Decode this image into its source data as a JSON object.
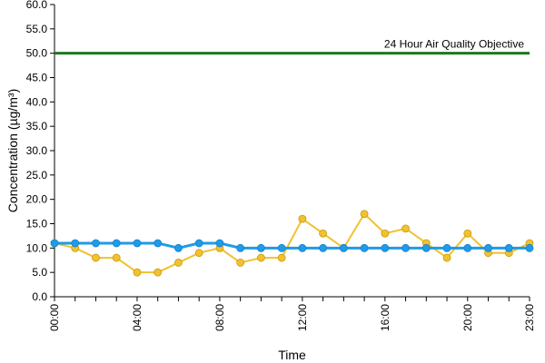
{
  "chart_data": {
    "type": "line",
    "title": "",
    "xlabel": "Time",
    "ylabel": "Concentration (µg/m³)",
    "ylim": [
      0,
      60
    ],
    "y_ticks": [
      "0.0",
      "5.0",
      "10.0",
      "15.0",
      "20.0",
      "25.0",
      "30.0",
      "35.0",
      "40.0",
      "45.0",
      "50.0",
      "55.0",
      "60.0"
    ],
    "x_tick_labels": [
      "00:00",
      "04:00",
      "08:00",
      "12:00",
      "16:00",
      "20:00",
      "23:00"
    ],
    "x_tick_hours": [
      0,
      4,
      8,
      12,
      16,
      20,
      23
    ],
    "grid": false,
    "legend": "none",
    "reference_line": {
      "value": 50,
      "label": "24 Hour Air Quality Objective",
      "color": "#1a7a1a"
    },
    "series": [
      {
        "color": "#f2c12e",
        "x": [
          0,
          1,
          2,
          3,
          4,
          5,
          6,
          7,
          8,
          9,
          10,
          11,
          12,
          13,
          14,
          15,
          16,
          17,
          18,
          19,
          20,
          21,
          22,
          23
        ],
        "values": [
          11,
          10,
          8,
          8,
          5,
          5,
          7,
          9,
          10,
          7,
          8,
          8,
          16,
          13,
          10,
          17,
          13,
          14,
          11,
          8,
          13,
          9,
          9,
          11
        ]
      },
      {
        "color": "#1e9be9",
        "x": [
          0,
          1,
          2,
          3,
          4,
          5,
          6,
          7,
          8,
          9,
          10,
          11,
          12,
          13,
          14,
          15,
          16,
          17,
          18,
          19,
          20,
          21,
          22,
          23
        ],
        "values": [
          11,
          11,
          11,
          11,
          11,
          11,
          10,
          11,
          11,
          10,
          10,
          10,
          10,
          10,
          10,
          10,
          10,
          10,
          10,
          10,
          10,
          10,
          10,
          10
        ]
      }
    ]
  }
}
